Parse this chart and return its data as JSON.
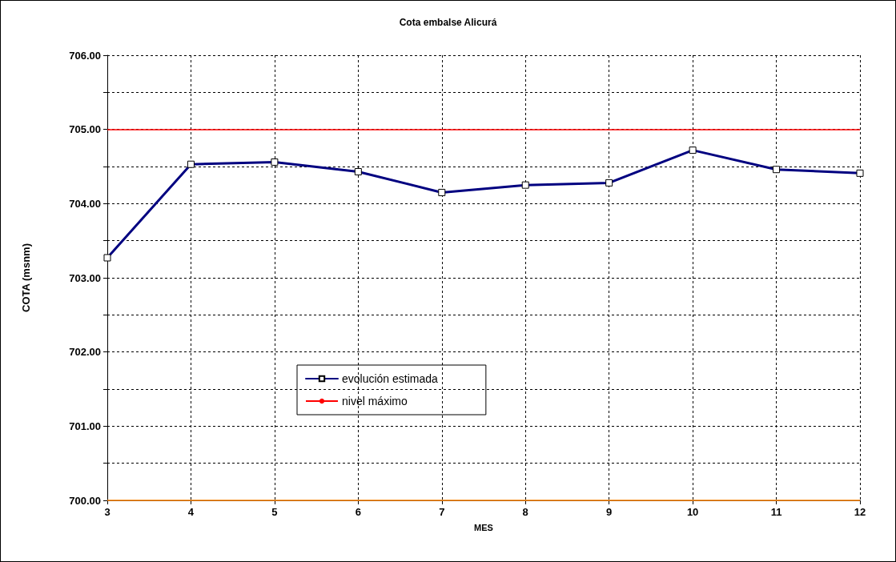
{
  "chart_data": {
    "type": "line",
    "title": "Cota embalse Alicurá",
    "xlabel": "MES",
    "ylabel": "COTA (msnm)",
    "x": [
      3,
      4,
      5,
      6,
      7,
      8,
      9,
      10,
      11,
      12
    ],
    "series": [
      {
        "name": "evolución estimada",
        "color": "#000080",
        "values": [
          703.27,
          704.53,
          704.56,
          704.43,
          704.15,
          704.25,
          704.28,
          704.72,
          704.46,
          704.41
        ]
      }
    ],
    "xlim": [
      3,
      12
    ],
    "xticks": [
      3,
      4,
      5,
      6,
      7,
      8,
      9,
      10,
      11,
      12
    ],
    "ylim": [
      700,
      706
    ],
    "yticks": [
      {
        "value": 700,
        "label": "700.00"
      },
      {
        "value": 700.5,
        "label": null
      },
      {
        "value": 701,
        "label": "701.00"
      },
      {
        "value": 701.5,
        "label": null
      },
      {
        "value": 702,
        "label": "702.00"
      },
      {
        "value": 702.5,
        "label": null
      },
      {
        "value": 703,
        "label": "703.00"
      },
      {
        "value": 703.5,
        "label": null
      },
      {
        "value": 704,
        "label": "704.00"
      },
      {
        "value": 704.5,
        "label": null
      },
      {
        "value": 705,
        "label": "705.00"
      },
      {
        "value": 705.5,
        "label": null
      },
      {
        "value": 706,
        "label": "706.00"
      }
    ],
    "ref_lines": [
      {
        "axis": "y",
        "value": 705,
        "label": "nivel máximo",
        "color": "#ff0000"
      },
      {
        "axis": "y",
        "value": 700,
        "color": "#ff8000"
      }
    ],
    "grid": true,
    "legend": "bottom left",
    "marker": "square",
    "line_style": "solid"
  }
}
